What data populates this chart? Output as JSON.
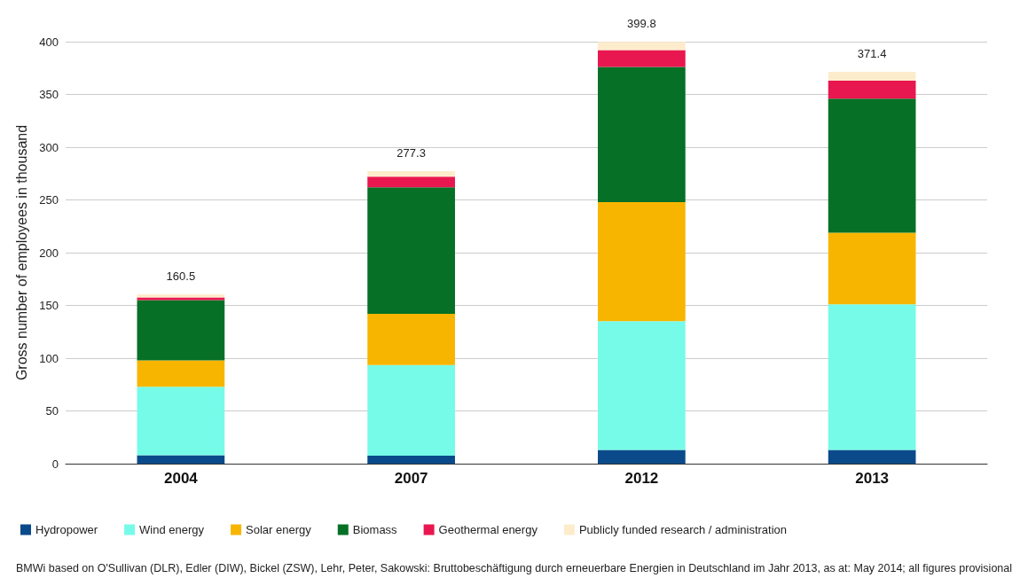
{
  "chart_data": {
    "type": "bar",
    "stacked": true,
    "ylabel": "Gross number of employees in thousand",
    "categories": [
      "2004",
      "2007",
      "2012",
      "2013"
    ],
    "series": [
      {
        "name": "Hydropower",
        "color": "#0a4a8a",
        "values": [
          8,
          7.5,
          13,
          13
        ]
      },
      {
        "name": "Wind energy",
        "color": "#76fbe8",
        "values": [
          65,
          86,
          122,
          138
        ]
      },
      {
        "name": "Solar energy",
        "color": "#f8b500",
        "values": [
          25,
          48.5,
          113,
          68
        ]
      },
      {
        "name": "Biomass",
        "color": "#067026",
        "values": [
          57,
          120,
          128,
          127
        ]
      },
      {
        "name": "Geothermal energy",
        "color": "#e8174f",
        "values": [
          2.5,
          10,
          16,
          17
        ]
      },
      {
        "name": "Publicly funded research / administration",
        "color": "#fdeccc",
        "values": [
          3,
          5.3,
          7.8,
          8.4
        ]
      }
    ],
    "totals": [
      "160.5",
      "277.3",
      "399.8",
      "371.4"
    ],
    "ylim": [
      0,
      400
    ],
    "yticks": [
      0,
      50,
      100,
      150,
      200,
      250,
      300,
      350,
      400
    ],
    "grid": "y",
    "legend": "bottom",
    "annotations": [
      "BMWi based on O'Sullivan (DLR), Edler (DIW), Bickel (ZSW), Lehr, Peter, Sakowski: Bruttobeschäftigung durch erneuerbare Energien in Deutschland im Jahr 2013, as at: May 2014; all figures provisional"
    ]
  }
}
